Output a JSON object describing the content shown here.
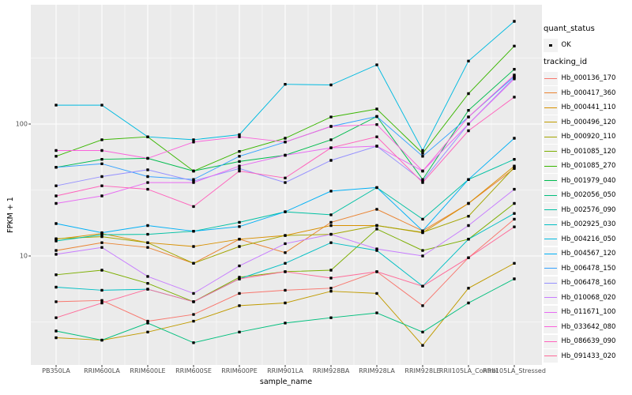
{
  "chart_data": {
    "type": "line",
    "title": "",
    "xlabel": "sample_name",
    "ylabel": "FPKM + 1",
    "y_scale": "log10",
    "y_tick_labels": [
      {
        "label": "100",
        "value": 100
      },
      {
        "label": "10",
        "value": 10
      }
    ],
    "y_minor_gridlines": [
      316.2,
      31.62,
      3.162
    ],
    "ylim_approx": [
      1.5,
      800
    ],
    "grid": true,
    "panel_bg": "#EBEBEB",
    "grid_color": "#FFFFFF",
    "tick_text_color": "#4D4D4D",
    "point_color": "#000000",
    "legend_key_bg": "#F2F2F2",
    "legend_position": "right",
    "x_categories": [
      "PB350LA",
      "RRIM600LA",
      "RRIM600LE",
      "RRIM600SE",
      "RRIM600PE",
      "RRIM901LA",
      "RRIM928BA",
      "RRIM928LA",
      "RRIM928LE",
      "RRII105LA_Control",
      "RRII105LA_Stressed"
    ],
    "legend": {
      "quant_status_title": "quant_status",
      "quant_status_items": [
        "OK"
      ],
      "tracking_id_title": "tracking_id"
    },
    "series": [
      {
        "tracking_id": "Hb_000136_170",
        "color": "#F8766D",
        "values": [
          4.5,
          4.6,
          3.2,
          3.6,
          5.2,
          5.5,
          5.7,
          7.6,
          4.2,
          9.7,
          19
        ]
      },
      {
        "tracking_id": "Hb_000417_360",
        "color": "#EA8331",
        "values": [
          11,
          12.6,
          11.6,
          8.8,
          13.4,
          10.6,
          18,
          22.6,
          15.5,
          25,
          46
        ]
      },
      {
        "tracking_id": "Hb_000441_110",
        "color": "#D89000",
        "values": [
          13.4,
          14.8,
          12.6,
          11.8,
          13.4,
          14.3,
          17,
          17,
          15,
          25,
          48
        ]
      },
      {
        "tracking_id": "Hb_000496_120",
        "color": "#C09B00",
        "values": [
          2.4,
          2.3,
          2.65,
          3.2,
          4.2,
          4.4,
          5.4,
          5.2,
          2.1,
          5.7,
          8.8
        ]
      },
      {
        "tracking_id": "Hb_000920_110",
        "color": "#A3A500",
        "values": [
          13.5,
          14,
          12.6,
          8.8,
          11.8,
          14.3,
          14.6,
          17,
          15.1,
          20,
          47
        ]
      },
      {
        "tracking_id": "Hb_001085_120",
        "color": "#7CAE00",
        "values": [
          7.2,
          7.8,
          6.2,
          4.5,
          6.9,
          7.6,
          7.8,
          16,
          11,
          13.4,
          25
        ]
      },
      {
        "tracking_id": "Hb_001085_270",
        "color": "#39B600",
        "values": [
          57,
          76,
          80,
          44,
          62,
          78,
          113,
          130,
          60,
          170,
          390
        ]
      },
      {
        "tracking_id": "Hb_001979_040",
        "color": "#00BB4E",
        "values": [
          47,
          54,
          55,
          44,
          52,
          58,
          76,
          114,
          38,
          127,
          260
        ]
      },
      {
        "tracking_id": "Hb_002056_050",
        "color": "#00BF7D",
        "values": [
          2.7,
          2.3,
          3.1,
          2.2,
          2.65,
          3.1,
          3.4,
          3.7,
          2.65,
          4.4,
          6.7
        ]
      },
      {
        "tracking_id": "Hb_002576_090",
        "color": "#00C1A3",
        "values": [
          13,
          14.5,
          14.6,
          15.4,
          18,
          21.6,
          20.5,
          33,
          19,
          38,
          54
        ]
      },
      {
        "tracking_id": "Hb_002925_030",
        "color": "#00BFC4",
        "values": [
          5.8,
          5.5,
          5.6,
          4.5,
          6.7,
          8.8,
          12.6,
          11,
          5.9,
          13.4,
          21
        ]
      },
      {
        "tracking_id": "Hb_004216_050",
        "color": "#00BAE0",
        "values": [
          139,
          139,
          80,
          76,
          83,
          200,
          198,
          281,
          63,
          300,
          600
        ]
      },
      {
        "tracking_id": "Hb_004567_120",
        "color": "#00B0F6",
        "values": [
          17.6,
          15,
          17,
          15.4,
          16.7,
          21.6,
          31,
          33,
          15.5,
          38,
          78
        ]
      },
      {
        "tracking_id": "Hb_006478_150",
        "color": "#35A2FF",
        "values": [
          47,
          50,
          40,
          38,
          57,
          73,
          96,
          114,
          57,
          113,
          230
        ]
      },
      {
        "tracking_id": "Hb_006478_160",
        "color": "#9590FF",
        "values": [
          34,
          40,
          45,
          37,
          46,
          36,
          53,
          68,
          37,
          100,
          225
        ]
      },
      {
        "tracking_id": "Hb_010068_020",
        "color": "#C77CFF",
        "values": [
          10.3,
          11.6,
          7,
          5.2,
          8.4,
          12.4,
          14.6,
          11.3,
          10,
          17,
          32
        ]
      },
      {
        "tracking_id": "Hb_011671_100",
        "color": "#E76BF3",
        "values": [
          25,
          28.5,
          36,
          36,
          48,
          58,
          66,
          68,
          44,
          100,
          220
        ]
      },
      {
        "tracking_id": "Hb_033642_080",
        "color": "#FA62DB",
        "values": [
          63,
          63,
          55,
          73,
          80,
          73,
          96,
          99,
          44,
          113,
          235
        ]
      },
      {
        "tracking_id": "Hb_086639_090",
        "color": "#FF62BC",
        "values": [
          28.5,
          34,
          32,
          23.7,
          44,
          39,
          66,
          80,
          36,
          89,
          160
        ]
      },
      {
        "tracking_id": "Hb_091433_020",
        "color": "#FF6A98",
        "values": [
          3.4,
          4.4,
          5.6,
          4.5,
          6.7,
          7.6,
          6.8,
          7.6,
          5.9,
          9.7,
          16.6
        ]
      }
    ]
  }
}
